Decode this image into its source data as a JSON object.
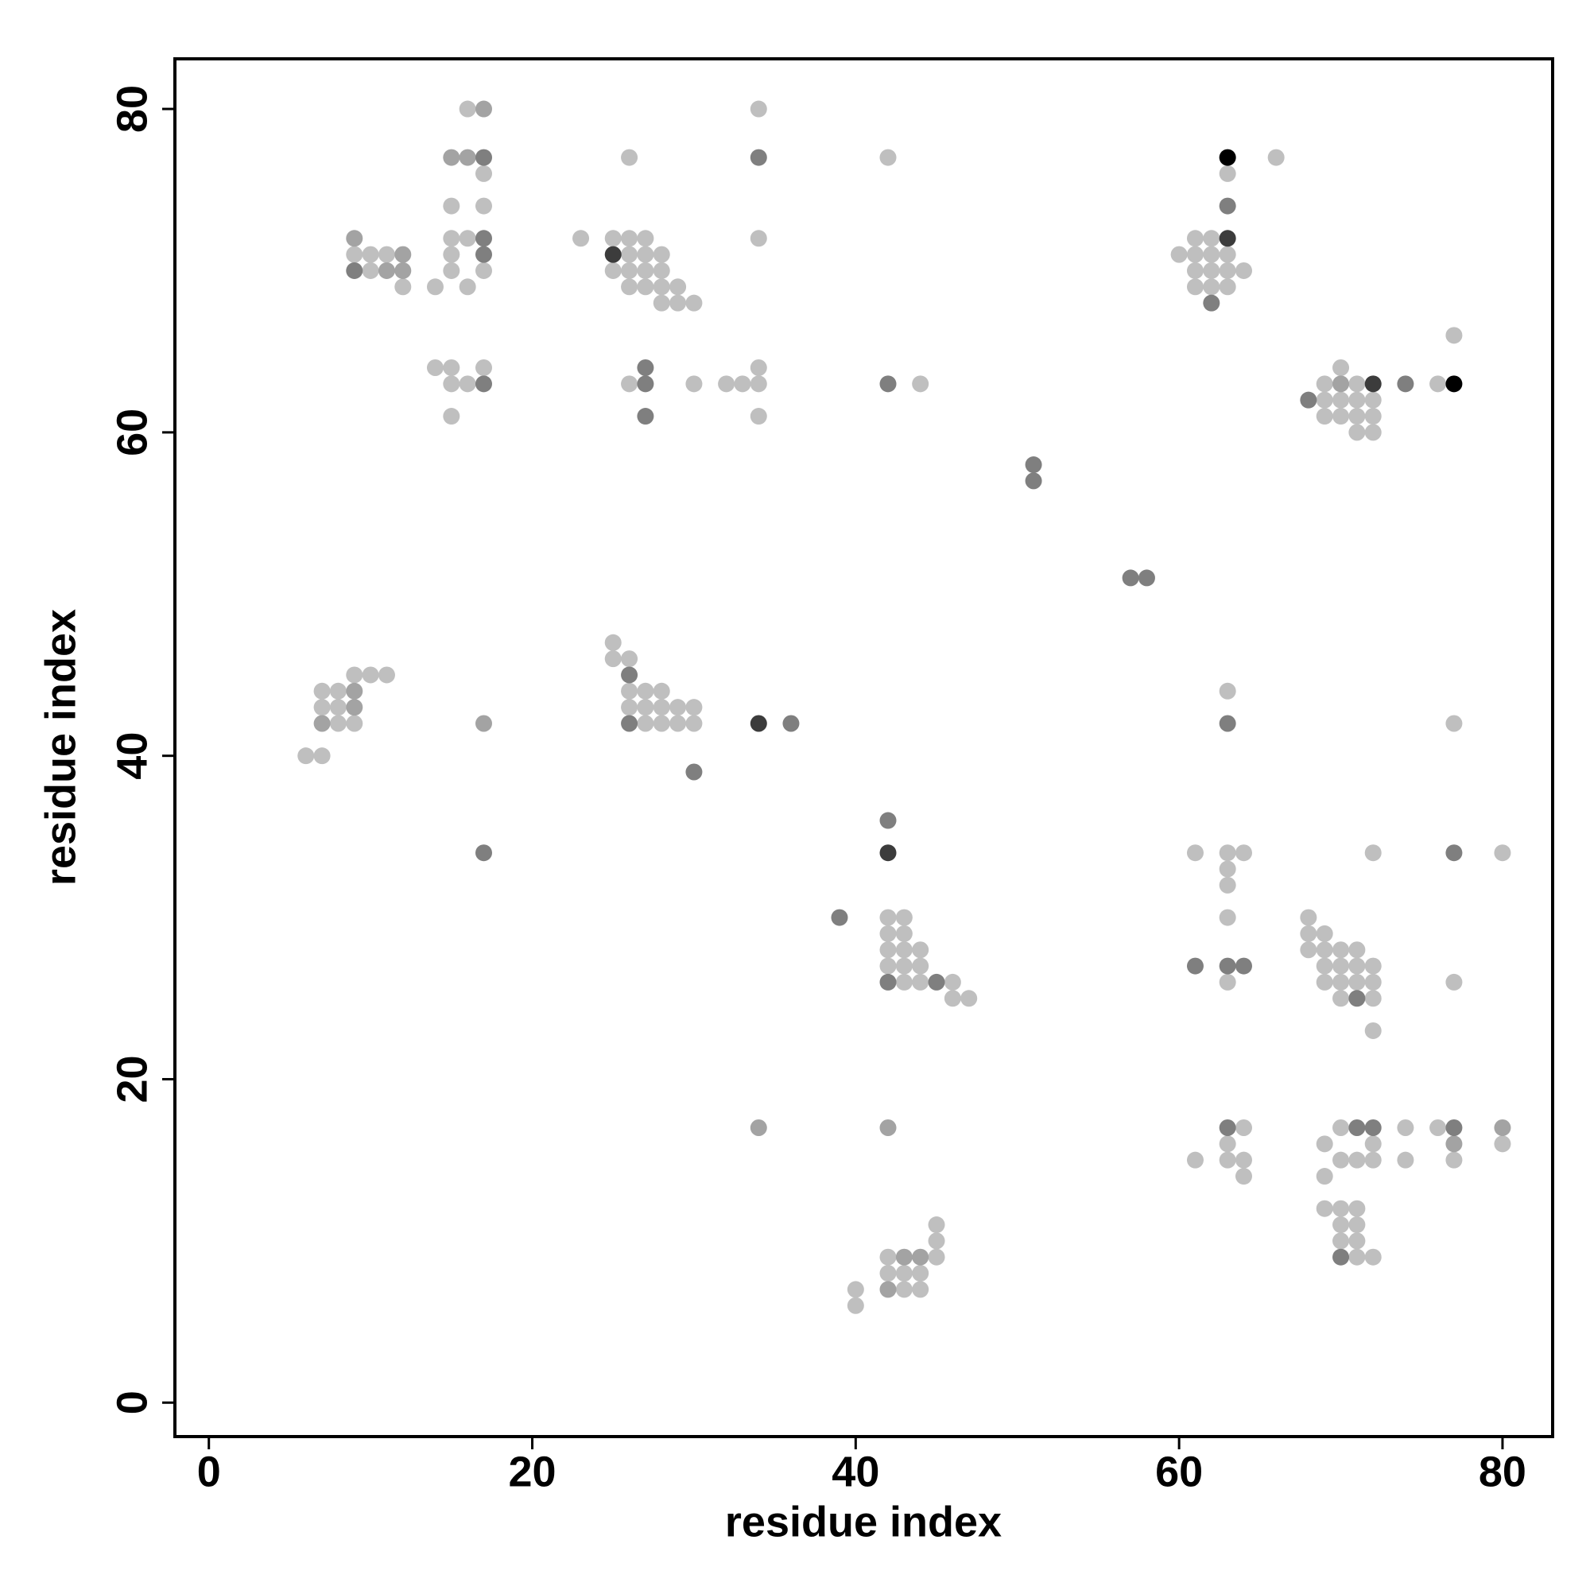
{
  "chart_data": {
    "type": "scatter",
    "xlabel": "residue index",
    "ylabel": "residue index",
    "xlim": [
      -2.1,
      83.1
    ],
    "ylim": [
      -2.1,
      83.1
    ],
    "xticks": [
      0,
      20,
      40,
      60,
      80
    ],
    "yticks": [
      0,
      20,
      40,
      60,
      80
    ],
    "series": [
      {
        "color": "#bfbfbf",
        "x": [
          16,
          34,
          26,
          42,
          66,
          17,
          63,
          15,
          17,
          15,
          16,
          23,
          25,
          26,
          27,
          34,
          61,
          62,
          9,
          10,
          11,
          15,
          26,
          27,
          28,
          60,
          61,
          62,
          63,
          10,
          15,
          17,
          25,
          26,
          27,
          28,
          61,
          62,
          63,
          64,
          12,
          14,
          16,
          26,
          27,
          28,
          29,
          61,
          62,
          63,
          28,
          29,
          30,
          77,
          14,
          15,
          17,
          34,
          70,
          15,
          16,
          26,
          30,
          32,
          33,
          34,
          44,
          69,
          71,
          76,
          69,
          70,
          71,
          72,
          15,
          34,
          69,
          70,
          71,
          72,
          71,
          72,
          25,
          25,
          26,
          9,
          10,
          11,
          7,
          8,
          26,
          27,
          28,
          63,
          7,
          8,
          26,
          27,
          28,
          29,
          30,
          8,
          9,
          27,
          28,
          29,
          30,
          77,
          6,
          7,
          61,
          63,
          64,
          72,
          80,
          63,
          63,
          42,
          43,
          63,
          68,
          42,
          43,
          68,
          69,
          42,
          43,
          44,
          68,
          69,
          70,
          71,
          42,
          43,
          44,
          69,
          70,
          71,
          72,
          43,
          44,
          46,
          63,
          69,
          70,
          71,
          72,
          77,
          46,
          47,
          70,
          72,
          72,
          64,
          70,
          74,
          76,
          63,
          69,
          72,
          80,
          61,
          63,
          64,
          70,
          71,
          72,
          74,
          77,
          64,
          69,
          69,
          70,
          71,
          45,
          70,
          71,
          45,
          70,
          71,
          42,
          45,
          71,
          72,
          42,
          43,
          44,
          40,
          43,
          44,
          40
        ],
        "values": [
          80,
          80,
          77,
          77,
          77,
          76,
          76,
          74,
          74,
          72,
          72,
          72,
          72,
          72,
          72,
          72,
          72,
          72,
          71,
          71,
          71,
          71,
          71,
          71,
          71,
          71,
          71,
          71,
          71,
          70,
          70,
          70,
          70,
          70,
          70,
          70,
          70,
          70,
          70,
          70,
          69,
          69,
          69,
          69,
          69,
          69,
          69,
          69,
          69,
          69,
          68,
          68,
          68,
          66,
          64,
          64,
          64,
          64,
          64,
          63,
          63,
          63,
          63,
          63,
          63,
          63,
          63,
          63,
          63,
          63,
          62,
          62,
          62,
          62,
          61,
          61,
          61,
          61,
          61,
          61,
          60,
          60,
          47,
          46,
          46,
          45,
          45,
          45,
          44,
          44,
          44,
          44,
          44,
          44,
          43,
          43,
          43,
          43,
          43,
          43,
          43,
          42,
          42,
          42,
          42,
          42,
          42,
          42,
          40,
          40,
          34,
          34,
          34,
          34,
          34,
          33,
          32,
          30,
          30,
          30,
          30,
          29,
          29,
          29,
          29,
          28,
          28,
          28,
          28,
          28,
          28,
          28,
          27,
          27,
          27,
          27,
          27,
          27,
          27,
          26,
          26,
          26,
          26,
          26,
          26,
          26,
          26,
          26,
          25,
          25,
          25,
          25,
          23,
          17,
          17,
          17,
          17,
          16,
          16,
          16,
          16,
          15,
          15,
          15,
          15,
          15,
          15,
          15,
          15,
          14,
          14,
          12,
          12,
          12,
          11,
          11,
          11,
          10,
          10,
          10,
          9,
          9,
          9,
          9,
          8,
          8,
          8,
          7,
          7,
          7,
          6
        ]
      },
      {
        "color": "#a3a3a3",
        "x": [
          17,
          15,
          16,
          9,
          12,
          11,
          12,
          70,
          9,
          9,
          7,
          17,
          34,
          42,
          77,
          80,
          43,
          44,
          42
        ],
        "values": [
          80,
          77,
          77,
          72,
          71,
          70,
          70,
          63,
          44,
          43,
          42,
          42,
          17,
          17,
          16,
          17,
          9,
          9,
          7
        ]
      },
      {
        "color": "#7f7f7f",
        "x": [
          17,
          34,
          63,
          17,
          17,
          9,
          62,
          27,
          17,
          27,
          42,
          74,
          68,
          27,
          51,
          51,
          57,
          58,
          26,
          26,
          36,
          63,
          30,
          42,
          17,
          77,
          39,
          61,
          63,
          64,
          42,
          45,
          71,
          63,
          71,
          72,
          77,
          70
        ],
        "values": [
          77,
          77,
          74,
          72,
          71,
          70,
          68,
          64,
          63,
          63,
          63,
          63,
          62,
          61,
          58,
          57,
          51,
          51,
          45,
          42,
          42,
          42,
          39,
          36,
          34,
          34,
          30,
          27,
          27,
          27,
          26,
          26,
          25,
          17,
          17,
          17,
          17,
          9
        ]
      },
      {
        "color": "#3c3c3c",
        "x": [
          63,
          25,
          72,
          34,
          42
        ],
        "values": [
          72,
          71,
          63,
          42,
          34
        ]
      },
      {
        "color": "#000000",
        "x": [
          63,
          77
        ],
        "values": [
          77,
          63
        ]
      }
    ]
  }
}
